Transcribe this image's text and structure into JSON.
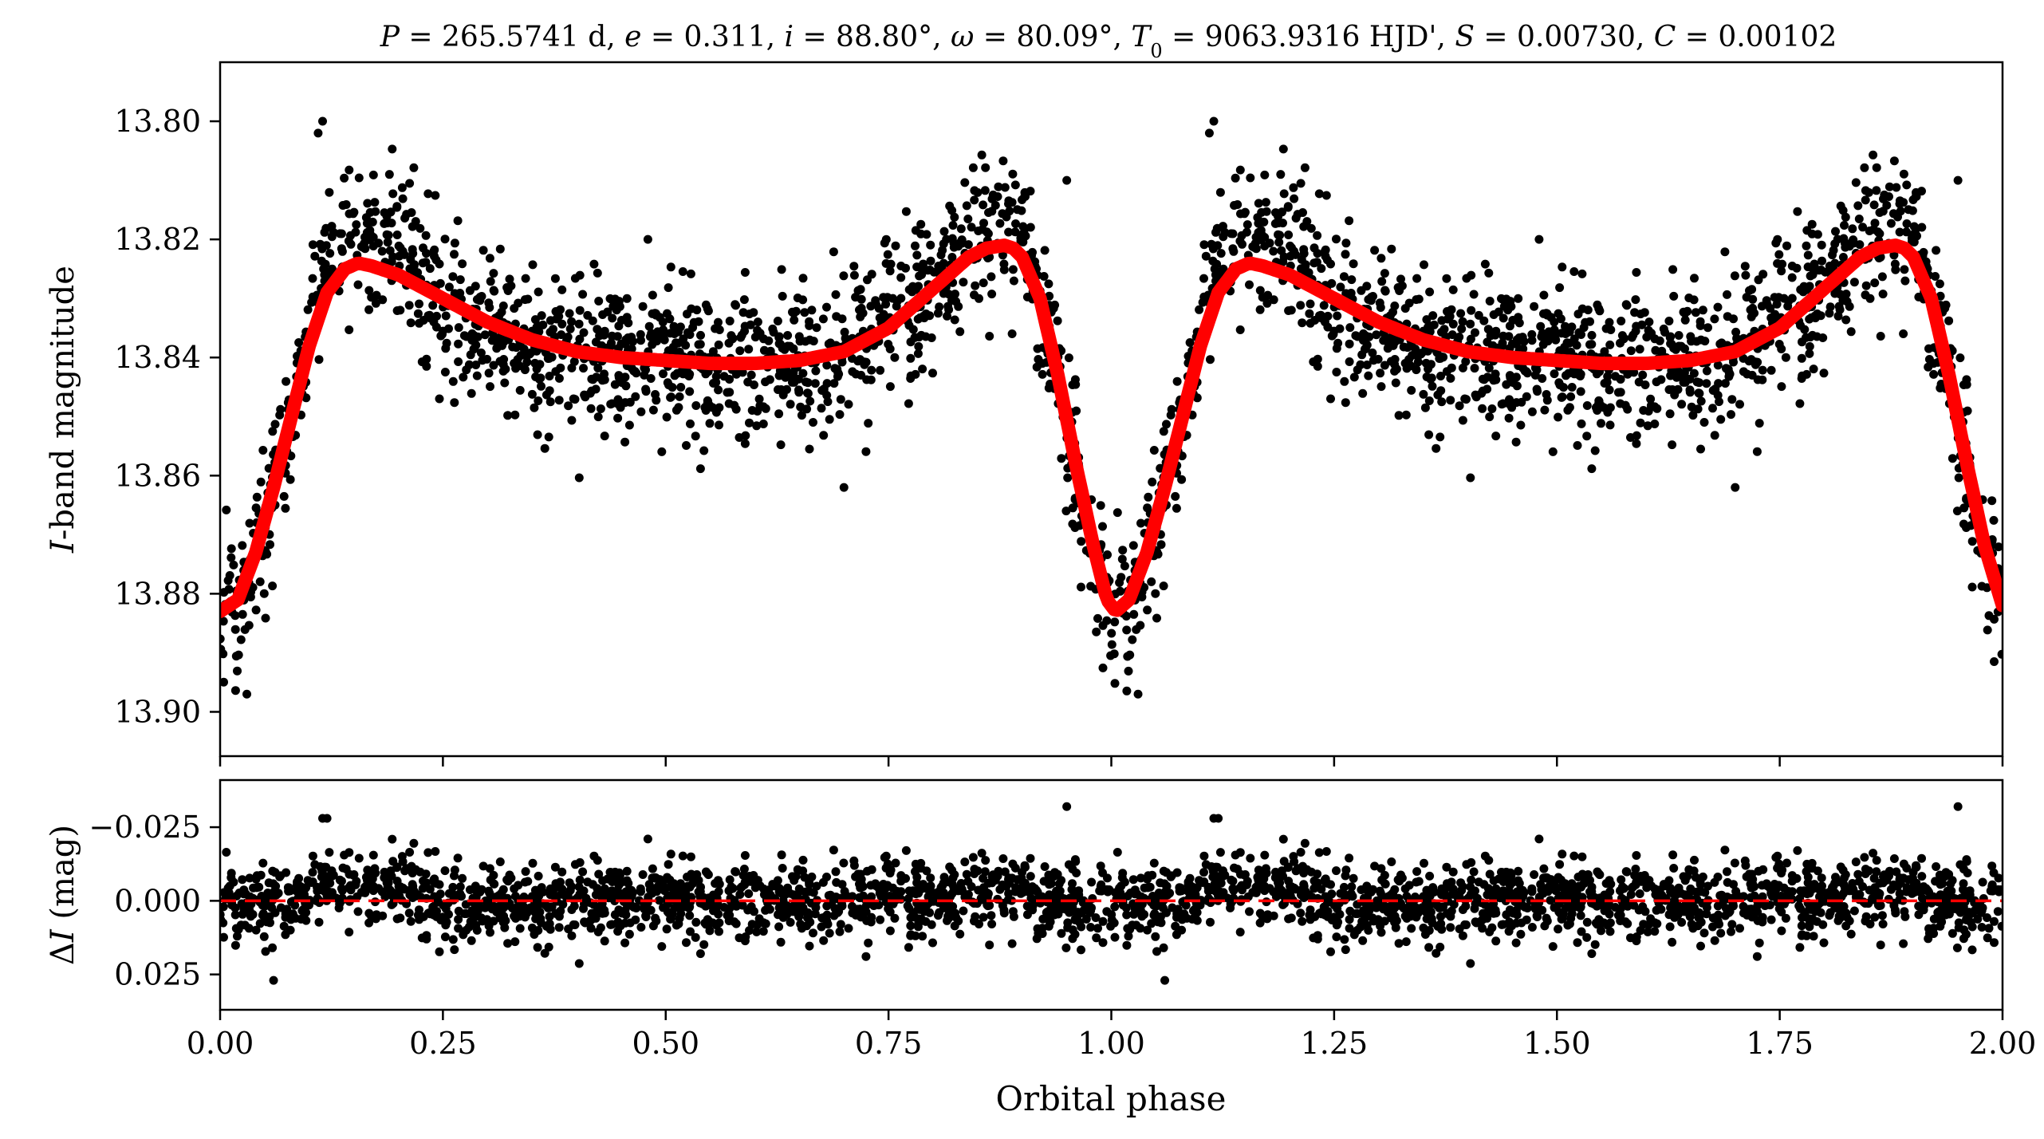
{
  "figure": {
    "title_parts": [
      {
        "t": "P",
        "i": true
      },
      {
        "t": " = 265.5741 d, "
      },
      {
        "t": "e",
        "i": true
      },
      {
        "t": " = 0.311, "
      },
      {
        "t": "i",
        "i": true
      },
      {
        "t": " = 88.80°, "
      },
      {
        "t": "ω",
        "i": true
      },
      {
        "t": " = 80.09°, "
      },
      {
        "t": "T",
        "i": true
      },
      {
        "t": "0",
        "sub": true
      },
      {
        "t": " = 9063.9316 HJD', "
      },
      {
        "t": "S",
        "i": true
      },
      {
        "t": " = 0.00730, "
      },
      {
        "t": "C",
        "i": true
      },
      {
        "t": " = 0.00102"
      }
    ],
    "xlabel": "Orbital phase"
  },
  "chart_data": [
    {
      "type": "scatter",
      "panel": "light-curve",
      "ylabel_italic": "I",
      "ylabel_rest": "-band magnitude",
      "xlim": [
        0.0,
        2.0
      ],
      "ylim": [
        13.9075,
        13.79
      ],
      "y_inverted": true,
      "yticks": [
        13.8,
        13.82,
        13.84,
        13.86,
        13.88,
        13.9
      ],
      "ytick_labels": [
        "13.80",
        "13.82",
        "13.84",
        "13.86",
        "13.88",
        "13.90"
      ],
      "xticks": [
        0.0,
        0.25,
        0.5,
        0.75,
        1.0,
        1.25,
        1.5,
        1.75,
        2.0
      ],
      "grid": false,
      "model_color": "#ff0000",
      "point_color": "#000000",
      "model_curve": {
        "x": [
          0.0,
          0.02,
          0.04,
          0.06,
          0.08,
          0.1,
          0.12,
          0.14,
          0.155,
          0.17,
          0.2,
          0.25,
          0.3,
          0.35,
          0.4,
          0.45,
          0.5,
          0.55,
          0.6,
          0.65,
          0.7,
          0.75,
          0.78,
          0.81,
          0.84,
          0.86,
          0.88,
          0.89,
          0.9,
          0.92,
          0.94,
          0.96,
          0.98,
          0.995,
          1.005,
          1.02,
          1.04,
          1.06,
          1.08,
          1.1,
          1.12,
          1.14,
          1.155,
          1.17,
          1.2,
          1.25,
          1.3,
          1.35,
          1.4,
          1.45,
          1.5,
          1.55,
          1.6,
          1.65,
          1.7,
          1.75,
          1.78,
          1.81,
          1.84,
          1.86,
          1.88,
          1.89,
          1.9,
          1.92,
          1.94,
          1.96,
          1.98,
          2.0
        ],
        "y": [
          13.883,
          13.881,
          13.873,
          13.862,
          13.85,
          13.838,
          13.829,
          13.825,
          13.824,
          13.8245,
          13.826,
          13.83,
          13.834,
          13.837,
          13.839,
          13.84,
          13.8405,
          13.841,
          13.841,
          13.8405,
          13.839,
          13.835,
          13.831,
          13.827,
          13.823,
          13.8215,
          13.821,
          13.8215,
          13.823,
          13.83,
          13.843,
          13.858,
          13.872,
          13.881,
          13.883,
          13.881,
          13.873,
          13.862,
          13.85,
          13.838,
          13.829,
          13.825,
          13.824,
          13.8245,
          13.826,
          13.83,
          13.834,
          13.837,
          13.839,
          13.84,
          13.8405,
          13.841,
          13.841,
          13.8405,
          13.839,
          13.835,
          13.831,
          13.827,
          13.823,
          13.8215,
          13.821,
          13.8215,
          13.823,
          13.83,
          13.843,
          13.858,
          13.872,
          13.882
        ]
      },
      "observations": {
        "note_noise_mag": 0.0085,
        "count_per_cycle": 1350,
        "outliers": [
          {
            "x": 0.115,
            "y": 13.8
          },
          {
            "x": 0.11,
            "y": 13.802
          },
          {
            "x": 0.19,
            "y": 13.809
          },
          {
            "x": 0.48,
            "y": 13.82
          },
          {
            "x": 0.95,
            "y": 13.81
          },
          {
            "x": 0.7,
            "y": 13.862
          },
          {
            "x": 0.03,
            "y": 13.897
          },
          {
            "x": 1.115,
            "y": 13.8
          },
          {
            "x": 1.11,
            "y": 13.802
          },
          {
            "x": 1.19,
            "y": 13.809
          },
          {
            "x": 1.48,
            "y": 13.82
          },
          {
            "x": 1.95,
            "y": 13.81
          },
          {
            "x": 1.7,
            "y": 13.862
          },
          {
            "x": 1.03,
            "y": 13.897
          }
        ]
      }
    },
    {
      "type": "scatter",
      "panel": "residuals",
      "ylabel_prefix": "Δ",
      "ylabel_italic": "I",
      "ylabel_rest": " (mag)",
      "xlim": [
        0.0,
        2.0
      ],
      "ylim": [
        0.037,
        -0.041
      ],
      "y_inverted": true,
      "yticks": [
        -0.025,
        0.0,
        0.025
      ],
      "ytick_labels": [
        "−0.025",
        "0.000",
        "0.025"
      ],
      "xticks": [
        0.0,
        0.25,
        0.5,
        0.75,
        1.0,
        1.25,
        1.5,
        1.75,
        2.0
      ],
      "xtick_labels": [
        "0.00",
        "0.25",
        "0.50",
        "0.75",
        "1.00",
        "1.25",
        "1.50",
        "1.75",
        "2.00"
      ],
      "zero_line": {
        "y": 0.0,
        "style": "dashed",
        "color": "#ff0000"
      },
      "grid": false,
      "observations": {
        "note_noise_mag": 0.0085,
        "count_per_cycle": 1350,
        "outliers": [
          {
            "x": 0.115,
            "y": -0.028
          },
          {
            "x": 0.12,
            "y": -0.028
          },
          {
            "x": 0.95,
            "y": -0.032
          },
          {
            "x": 0.48,
            "y": -0.021
          },
          {
            "x": 0.06,
            "y": 0.027
          },
          {
            "x": 1.06,
            "y": 0.027
          },
          {
            "x": 1.115,
            "y": -0.028
          },
          {
            "x": 1.12,
            "y": -0.028
          },
          {
            "x": 1.95,
            "y": -0.032
          },
          {
            "x": 1.48,
            "y": -0.021
          }
        ]
      }
    }
  ]
}
